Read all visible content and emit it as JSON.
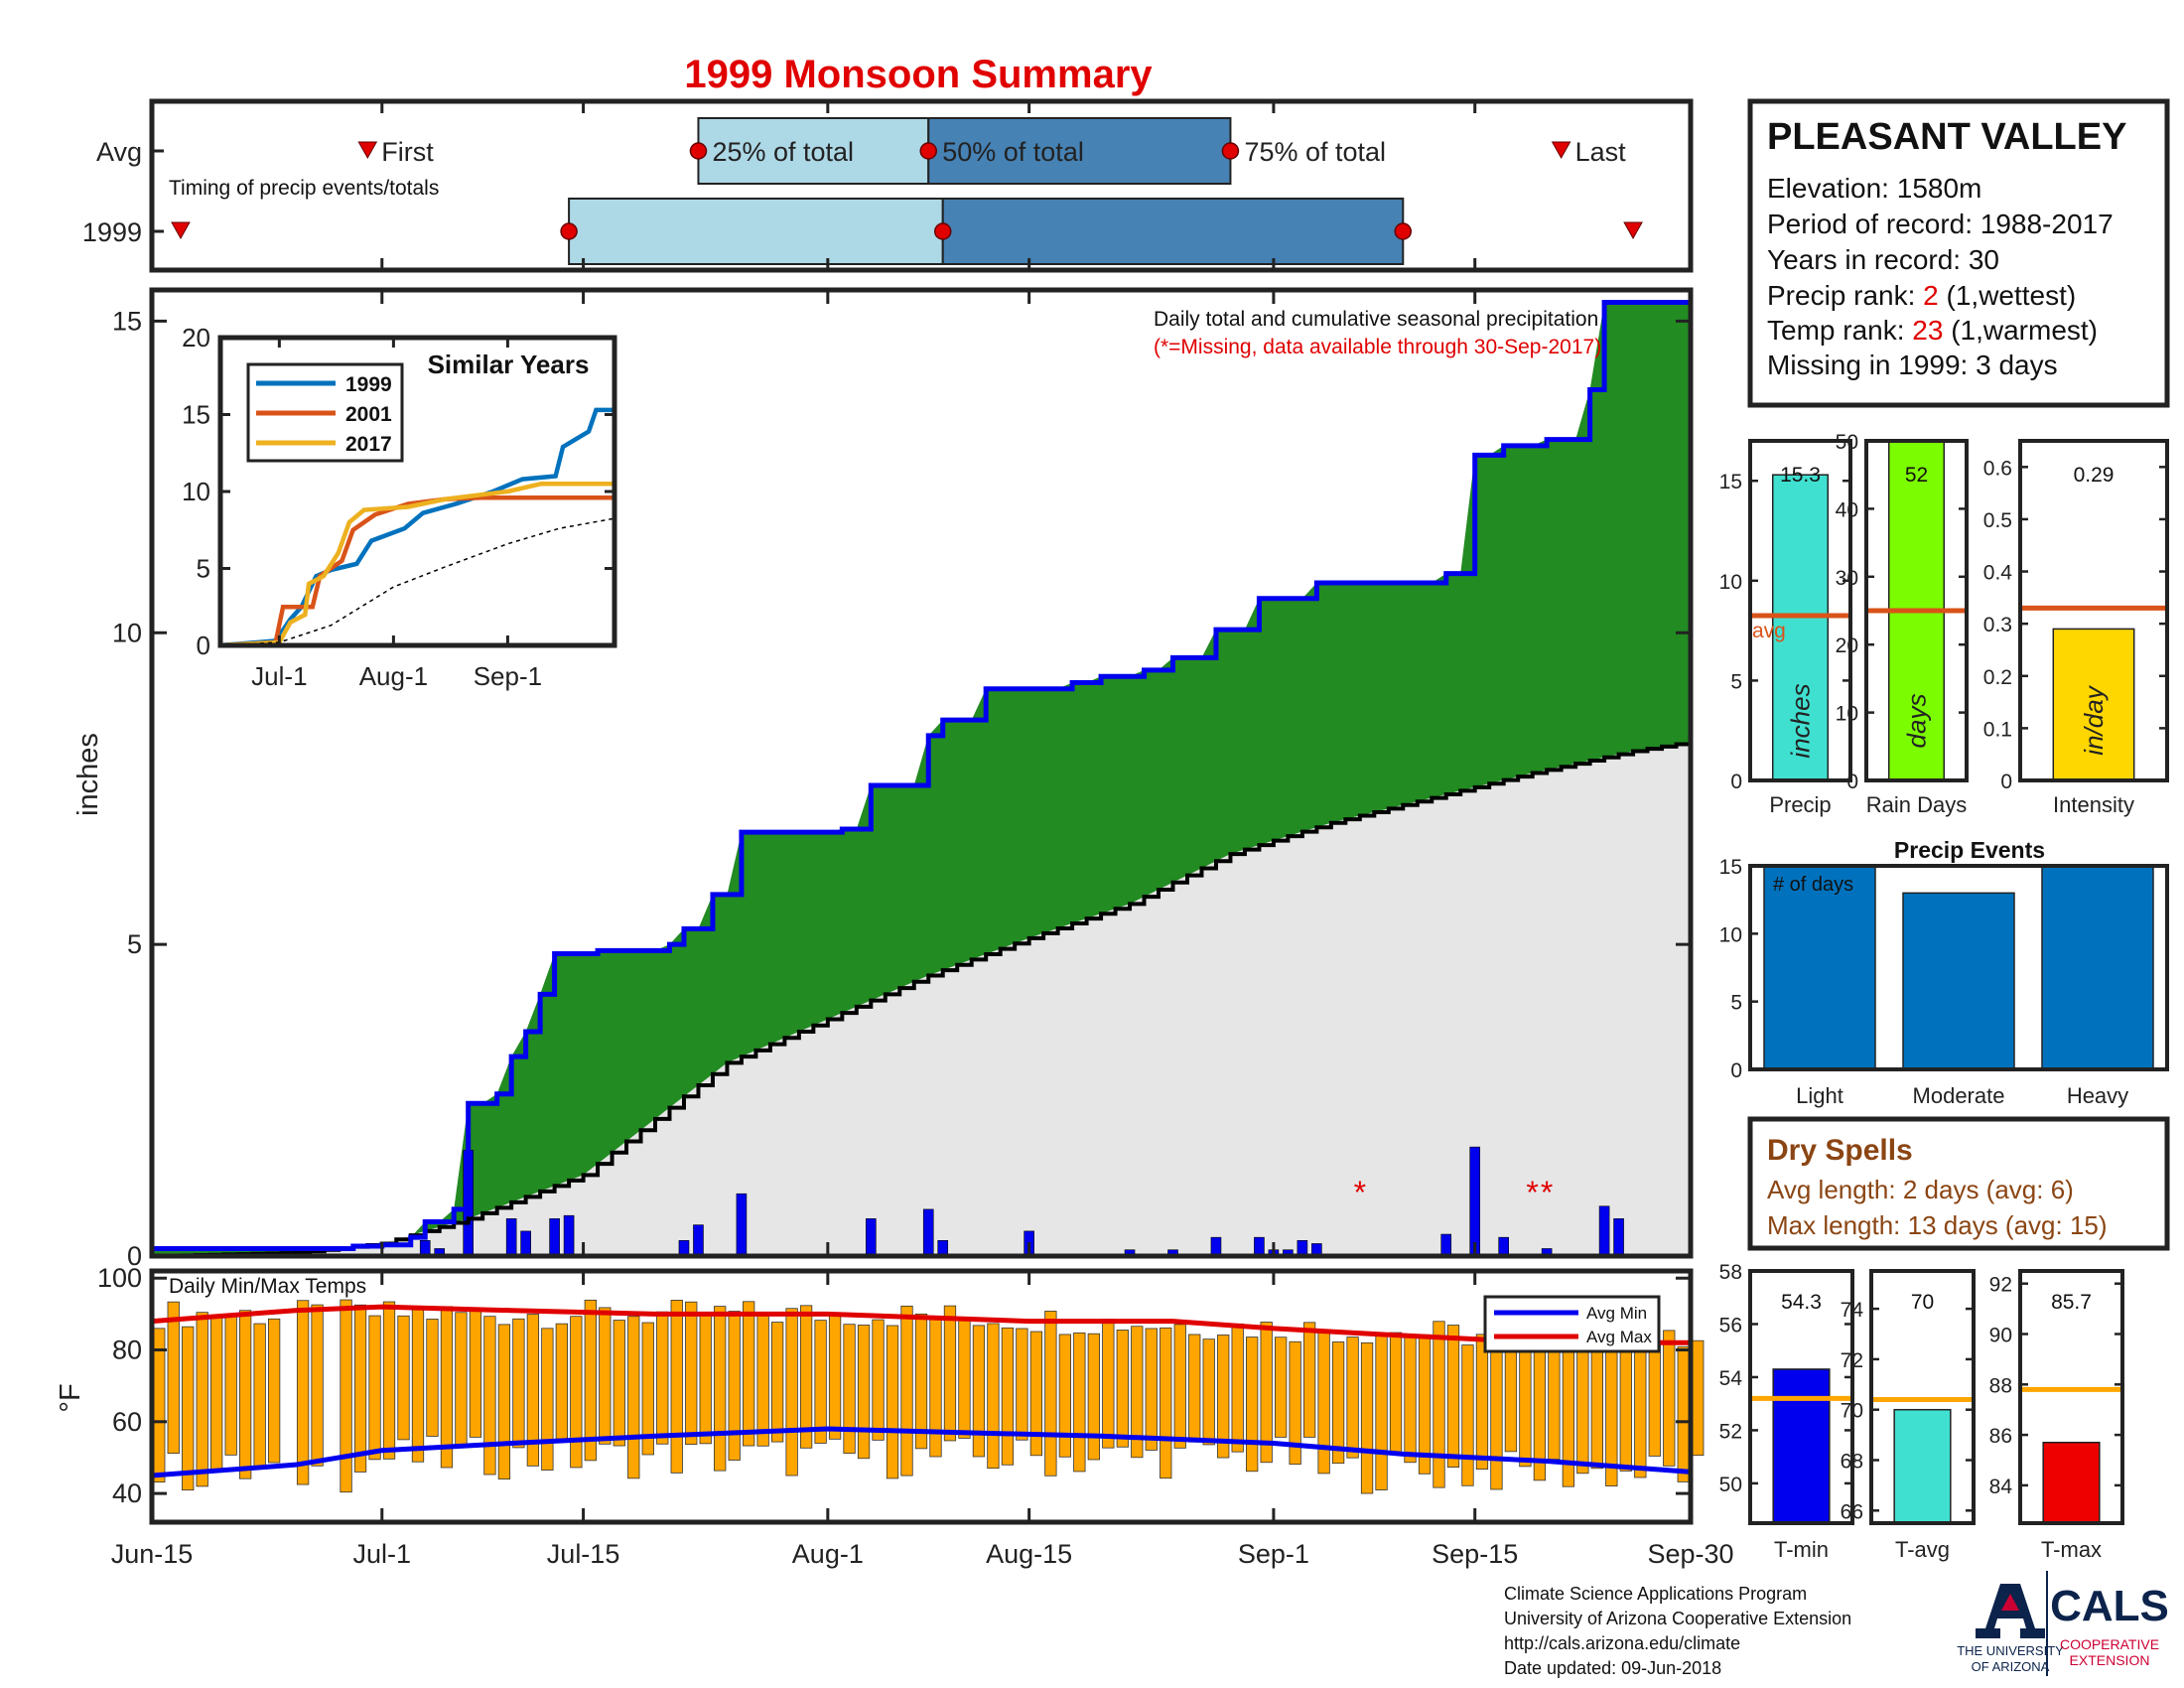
{
  "title": "1999 Monsoon Summary",
  "timing": {
    "row_labels": [
      "Avg",
      "1999"
    ],
    "subtitle": "Timing of precip events/totals",
    "first_label": "First",
    "last_label": "Last",
    "p25_label": "25% of total",
    "p50_label": "50% of total",
    "p75_label": "75% of total",
    "avg": {
      "first": "2000-06-30",
      "p25": "2000-07-23",
      "p50": "2000-08-08",
      "p75": "2000-08-29",
      "last": "2000-09-21"
    },
    "year": {
      "first": "2000-06-17",
      "p25": "2000-07-14",
      "p50": "2000-08-09",
      "p75": "2000-09-10",
      "last": "2000-09-26"
    },
    "colors": {
      "light": "#add8e6",
      "dark": "#4682b4",
      "marker": "#e00000"
    }
  },
  "station": {
    "name": "PLEASANT VALLEY",
    "elevation": "Elevation: 1580m",
    "period": "Period of record: 1988-2017",
    "years": "Years in record: 30",
    "precip_rank_prefix": "Precip rank: ",
    "precip_rank_value": "2",
    "precip_rank_suffix": " (1,wettest)",
    "temp_rank_prefix": "Temp rank: ",
    "temp_rank_value": "23",
    "temp_rank_suffix": " (1,warmest)",
    "missing": "Missing in 1999: 3 days"
  },
  "chart_data": [
    {
      "type": "area",
      "name": "main-precip",
      "ylabel": "inches",
      "ylim": [
        0,
        15.5
      ],
      "yticks": [
        0,
        5,
        10,
        15
      ],
      "annotation": "Daily total and cumulative seasonal precipitation",
      "missing_note": "(*=Missing, data available through 30-Sep-2017)",
      "cumulative_1999": [
        [
          "2000-06-15",
          0.12
        ],
        [
          "2000-06-25",
          0.12
        ],
        [
          "2000-06-29",
          0.16
        ],
        [
          "2000-07-01",
          0.18
        ],
        [
          "2000-07-03",
          0.3
        ],
        [
          "2000-07-04",
          0.55
        ],
        [
          "2000-07-06",
          0.75
        ],
        [
          "2000-07-07",
          2.45
        ],
        [
          "2000-07-09",
          2.6
        ],
        [
          "2000-07-10",
          3.2
        ],
        [
          "2000-07-11",
          3.6
        ],
        [
          "2000-07-12",
          4.2
        ],
        [
          "2000-07-13",
          4.85
        ],
        [
          "2000-07-16",
          4.9
        ],
        [
          "2000-07-21",
          5.0
        ],
        [
          "2000-07-22",
          5.25
        ],
        [
          "2000-07-24",
          5.8
        ],
        [
          "2000-07-26",
          6.8
        ],
        [
          "2000-08-02",
          6.85
        ],
        [
          "2000-08-04",
          7.55
        ],
        [
          "2000-08-08",
          8.35
        ],
        [
          "2000-08-09",
          8.6
        ],
        [
          "2000-08-12",
          9.1
        ],
        [
          "2000-08-18",
          9.2
        ],
        [
          "2000-08-20",
          9.3
        ],
        [
          "2000-08-23",
          9.4
        ],
        [
          "2000-08-25",
          9.6
        ],
        [
          "2000-08-28",
          10.05
        ],
        [
          "2000-08-31",
          10.55
        ],
        [
          "2000-09-04",
          10.8
        ],
        [
          "2000-09-13",
          10.95
        ],
        [
          "2000-09-15",
          12.85
        ],
        [
          "2000-09-17",
          13.0
        ],
        [
          "2000-09-20",
          13.1
        ],
        [
          "2000-09-23",
          13.9
        ],
        [
          "2000-09-24",
          15.3
        ],
        [
          "2000-09-30",
          15.3
        ]
      ],
      "cumulative_avg": [
        [
          "2000-06-15",
          0.0
        ],
        [
          "2000-06-25",
          0.05
        ],
        [
          "2000-07-01",
          0.2
        ],
        [
          "2000-07-07",
          0.6
        ],
        [
          "2000-07-15",
          1.3
        ],
        [
          "2000-07-20",
          2.2
        ],
        [
          "2000-07-25",
          3.1
        ],
        [
          "2000-08-01",
          3.8
        ],
        [
          "2000-08-08",
          4.5
        ],
        [
          "2000-08-15",
          5.1
        ],
        [
          "2000-08-22",
          5.65
        ],
        [
          "2000-08-29",
          6.45
        ],
        [
          "2000-09-05",
          6.95
        ],
        [
          "2000-09-12",
          7.35
        ],
        [
          "2000-09-19",
          7.75
        ],
        [
          "2000-09-26",
          8.1
        ],
        [
          "2000-09-30",
          8.25
        ]
      ],
      "daily_1999": [
        [
          "2000-07-04",
          0.25
        ],
        [
          "2000-07-05",
          0.12
        ],
        [
          "2000-07-07",
          1.7
        ],
        [
          "2000-07-10",
          0.6
        ],
        [
          "2000-07-11",
          0.4
        ],
        [
          "2000-07-13",
          0.6
        ],
        [
          "2000-07-14",
          0.65
        ],
        [
          "2000-07-22",
          0.25
        ],
        [
          "2000-07-23",
          0.5
        ],
        [
          "2000-07-26",
          1.0
        ],
        [
          "2000-08-04",
          0.6
        ],
        [
          "2000-08-08",
          0.75
        ],
        [
          "2000-08-09",
          0.25
        ],
        [
          "2000-08-15",
          0.4
        ],
        [
          "2000-08-22",
          0.1
        ],
        [
          "2000-08-25",
          0.1
        ],
        [
          "2000-08-28",
          0.3
        ],
        [
          "2000-08-31",
          0.3
        ],
        [
          "2000-09-01",
          0.1
        ],
        [
          "2000-09-02",
          0.1
        ],
        [
          "2000-09-03",
          0.25
        ],
        [
          "2000-09-04",
          0.2
        ],
        [
          "2000-09-13",
          0.35
        ],
        [
          "2000-09-15",
          1.75
        ],
        [
          "2000-09-17",
          0.3
        ],
        [
          "2000-09-20",
          0.12
        ],
        [
          "2000-09-24",
          0.8
        ],
        [
          "2000-09-25",
          0.6
        ]
      ],
      "missing_dates": [
        "2000-09-07",
        "2000-09-19",
        "2000-09-20"
      ],
      "colors": {
        "cumulative_line": "#0000ee",
        "excess_fill": "#228b22",
        "avg_fill": "#e6e6e6",
        "daily_bars": "#0000ee",
        "missing_marker": "#e00000"
      }
    },
    {
      "type": "line",
      "name": "similar-years",
      "title": "Similar Years",
      "categories": [
        "Jul-1",
        "Aug-1",
        "Sep-1"
      ],
      "ylim": [
        0,
        20
      ],
      "yticks": [
        0,
        5,
        10,
        15,
        20
      ],
      "series": [
        {
          "name": "1999",
          "color": "#0072bd",
          "values": [
            [
              "2000-06-15",
              0
            ],
            [
              "2000-06-30",
              0.3
            ],
            [
              "2000-07-04",
              1.7
            ],
            [
              "2000-07-07",
              2.5
            ],
            [
              "2000-07-11",
              4.5
            ],
            [
              "2000-07-15",
              4.9
            ],
            [
              "2000-07-22",
              5.3
            ],
            [
              "2000-07-26",
              6.8
            ],
            [
              "2000-08-04",
              7.6
            ],
            [
              "2000-08-09",
              8.6
            ],
            [
              "2000-08-18",
              9.2
            ],
            [
              "2000-08-28",
              10.0
            ],
            [
              "2000-09-05",
              10.8
            ],
            [
              "2000-09-14",
              11.0
            ],
            [
              "2000-09-16",
              12.9
            ],
            [
              "2000-09-23",
              13.9
            ],
            [
              "2000-09-25",
              15.3
            ],
            [
              "2000-09-30",
              15.3
            ]
          ]
        },
        {
          "name": "2001",
          "color": "#d95319",
          "values": [
            [
              "2000-06-15",
              0
            ],
            [
              "2000-06-30",
              0.2
            ],
            [
              "2000-07-02",
              2.5
            ],
            [
              "2000-07-10",
              2.5
            ],
            [
              "2000-07-12",
              4.5
            ],
            [
              "2000-07-18",
              5.5
            ],
            [
              "2000-07-21",
              7.5
            ],
            [
              "2000-07-27",
              8.5
            ],
            [
              "2000-08-05",
              9.2
            ],
            [
              "2000-08-15",
              9.5
            ],
            [
              "2000-08-25",
              9.6
            ],
            [
              "2000-09-30",
              9.6
            ]
          ]
        },
        {
          "name": "2017",
          "color": "#edb120",
          "values": [
            [
              "2000-06-15",
              0
            ],
            [
              "2000-07-01",
              0.2
            ],
            [
              "2000-07-04",
              1.5
            ],
            [
              "2000-07-08",
              2.0
            ],
            [
              "2000-07-09",
              4.0
            ],
            [
              "2000-07-13",
              4.5
            ],
            [
              "2000-07-17",
              6.0
            ],
            [
              "2000-07-20",
              8.0
            ],
            [
              "2000-07-24",
              8.8
            ],
            [
              "2000-08-05",
              9.0
            ],
            [
              "2000-08-15",
              9.5
            ],
            [
              "2000-09-01",
              10.0
            ],
            [
              "2000-09-10",
              10.5
            ],
            [
              "2000-09-30",
              10.5
            ]
          ]
        },
        {
          "name": "avg",
          "color": "#000000",
          "values": [
            [
              "2000-06-15",
              0
            ],
            [
              "2000-07-01",
              0.2
            ],
            [
              "2000-07-15",
              1.3
            ],
            [
              "2000-08-01",
              3.8
            ],
            [
              "2000-08-15",
              5.1
            ],
            [
              "2000-09-01",
              6.6
            ],
            [
              "2000-09-15",
              7.6
            ],
            [
              "2000-09-30",
              8.25
            ]
          ]
        }
      ]
    },
    {
      "type": "bar",
      "name": "daily-temps",
      "label": "Daily Min/Max Temps",
      "ylabel": "°F",
      "ylim": [
        32,
        102
      ],
      "yticks": [
        40,
        60,
        80,
        100
      ],
      "xticks": [
        "Jun-15",
        "Jul-1",
        "Jul-15",
        "Aug-1",
        "Aug-15",
        "Sep-1",
        "Sep-15",
        "Sep-30"
      ],
      "xtick_dates": [
        "2000-06-15",
        "2000-07-01",
        "2000-07-15",
        "2000-08-01",
        "2000-08-15",
        "2000-09-01",
        "2000-09-15",
        "2000-09-30"
      ],
      "legend": [
        "Avg Min",
        "Avg Max"
      ],
      "avg_min": [
        [
          "2000-06-15",
          45
        ],
        [
          "2000-06-25",
          48
        ],
        [
          "2000-07-01",
          52
        ],
        [
          "2000-07-10",
          54
        ],
        [
          "2000-07-20",
          56
        ],
        [
          "2000-08-01",
          58
        ],
        [
          "2000-08-10",
          57
        ],
        [
          "2000-08-20",
          56
        ],
        [
          "2000-09-01",
          54
        ],
        [
          "2000-09-10",
          51
        ],
        [
          "2000-09-20",
          49
        ],
        [
          "2000-09-30",
          46
        ]
      ],
      "avg_max": [
        [
          "2000-06-15",
          88
        ],
        [
          "2000-06-25",
          91
        ],
        [
          "2000-07-01",
          92
        ],
        [
          "2000-07-10",
          91
        ],
        [
          "2000-07-20",
          90
        ],
        [
          "2000-08-01",
          90
        ],
        [
          "2000-08-15",
          88
        ],
        [
          "2000-08-25",
          88
        ],
        [
          "2000-09-01",
          86
        ],
        [
          "2000-09-10",
          84
        ],
        [
          "2000-09-20",
          82
        ],
        [
          "2000-09-30",
          82
        ]
      ],
      "colors": {
        "bars": "#ffa500",
        "avg_min": "#0000ee",
        "avg_max": "#e00000"
      }
    },
    {
      "type": "bar",
      "name": "precip-summary",
      "panels": [
        {
          "label": "Precip",
          "unit": "inches",
          "value": 15.3,
          "value_label": "15.3",
          "avg": 8.25,
          "ylim": [
            0,
            17
          ],
          "yticks": [
            "0",
            "5",
            "10",
            "15"
          ],
          "color": "#40e0d0",
          "avg_label": "avg"
        },
        {
          "label": "Rain Days",
          "unit": "days",
          "value": 52,
          "value_label": "52",
          "avg": 25,
          "ylim": [
            0,
            50
          ],
          "yticks": [
            "0",
            "10",
            "20",
            "30",
            "40",
            "50"
          ],
          "color": "#7cfc00"
        },
        {
          "label": "Intensity",
          "unit": "in/day",
          "value": 0.29,
          "value_label": "0.29",
          "avg": 0.33,
          "ylim": [
            0,
            0.65
          ],
          "yticks": [
            "0",
            "0.1",
            "0.2",
            "0.3",
            "0.4",
            "0.5",
            "0.6"
          ],
          "color": "#ffd700"
        }
      ],
      "avg_line_color": "#d95319"
    },
    {
      "type": "bar",
      "name": "precip-events",
      "title": "Precip Events",
      "note": "# of days",
      "categories": [
        "Light",
        "Moderate",
        "Heavy"
      ],
      "values": [
        15,
        13,
        15
      ],
      "ylim": [
        0,
        15
      ],
      "yticks": [
        0,
        5,
        10,
        15
      ],
      "color": "#0072bd"
    },
    {
      "type": "bar",
      "name": "temp-summary",
      "panels": [
        {
          "label": "T-min",
          "value": 54.3,
          "value_label": "54.3",
          "avg": 53.2,
          "ylim": [
            48.5,
            58
          ],
          "yticks": [
            "50",
            "52",
            "54",
            "56",
            "58"
          ],
          "color": "#0000ee"
        },
        {
          "label": "T-avg",
          "value": 70,
          "value_label": "70",
          "avg": 70.4,
          "ylim": [
            65.5,
            75.5
          ],
          "yticks": [
            "66",
            "68",
            "70",
            "72",
            "74"
          ],
          "color": "#40e0d0"
        },
        {
          "label": "T-max",
          "value": 85.7,
          "value_label": "85.7",
          "avg": 87.8,
          "ylim": [
            82.5,
            92.5
          ],
          "yticks": [
            "84",
            "86",
            "88",
            "90",
            "92"
          ],
          "color": "#ee0000"
        }
      ],
      "avg_line_color": "#ffa500"
    }
  ],
  "dry_spells": {
    "title": "Dry Spells",
    "avg_length": "Avg length: 2 days (avg: 6)",
    "max_length": "Max length: 13 days (avg: 15)"
  },
  "footer": {
    "line1": "Climate Science Applications Program",
    "line2": "University of Arizona Cooperative Extension",
    "line3": "http://cals.arizona.edu/climate",
    "line4": " Date updated: 09-Jun-2018"
  },
  "logos": {
    "ua_line1": "THE UNIVERSITY",
    "ua_line2": "OF ARIZONA",
    "cals": "CALS",
    "coop1": "COOPERATIVE",
    "coop2": "EXTENSION"
  }
}
